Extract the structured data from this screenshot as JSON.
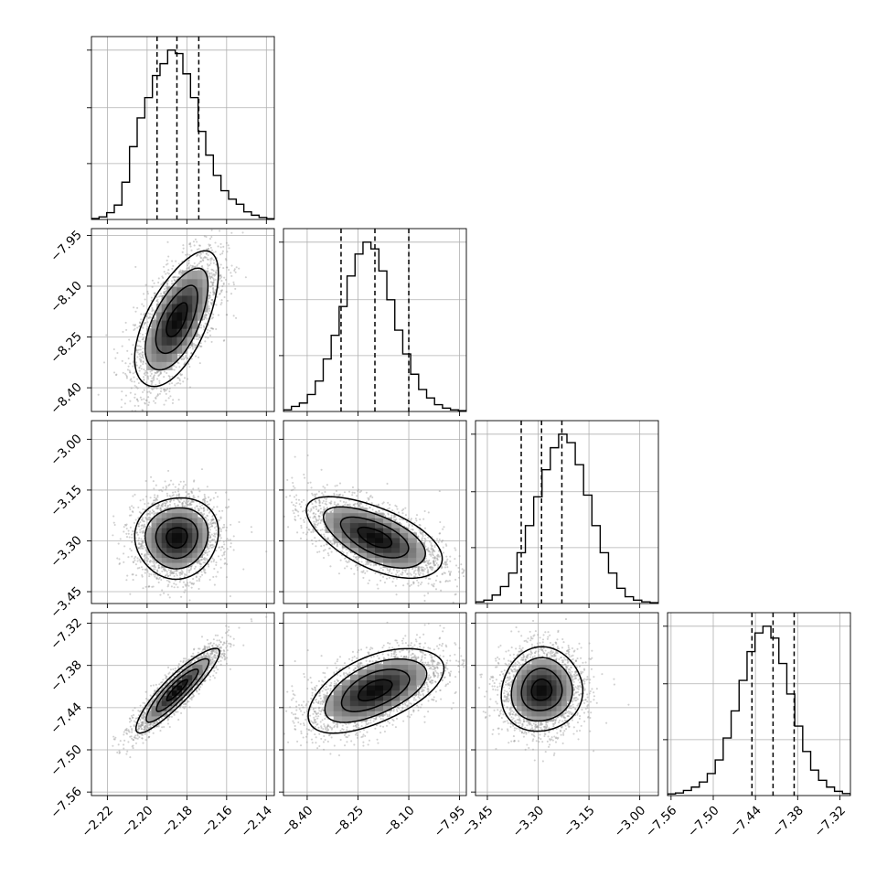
{
  "chart_data": {
    "type": "corner",
    "parameters": [
      {
        "axis_range": [
          -2.228,
          -2.136
        ],
        "ticks": [
          -2.22,
          -2.2,
          -2.18,
          -2.16,
          -2.14
        ],
        "tick_labels": [
          "−2.22",
          "−2.20",
          "−2.18",
          "−2.16",
          "−2.14"
        ],
        "quantiles": [
          -2.195,
          -2.185,
          -2.174
        ],
        "hist_values": [
          0.006,
          0.015,
          0.04,
          0.085,
          0.22,
          0.43,
          0.6,
          0.72,
          0.85,
          0.92,
          1.0,
          0.98,
          0.86,
          0.72,
          0.52,
          0.38,
          0.26,
          0.17,
          0.12,
          0.09,
          0.045,
          0.025,
          0.012,
          0.004
        ]
      },
      {
        "axis_range": [
          -8.47,
          -7.93
        ],
        "ticks": [
          -8.4,
          -8.25,
          -8.1,
          -7.95
        ],
        "tick_labels": [
          "−8.40",
          "−8.25",
          "−8.10",
          "−7.95"
        ],
        "quantiles": [
          -8.3,
          -8.2,
          -8.1
        ],
        "hist_values": [
          0.01,
          0.03,
          0.05,
          0.1,
          0.18,
          0.31,
          0.45,
          0.62,
          0.8,
          0.93,
          1.0,
          0.96,
          0.83,
          0.66,
          0.48,
          0.34,
          0.22,
          0.13,
          0.08,
          0.04,
          0.02,
          0.01,
          0.005
        ]
      },
      {
        "axis_range": [
          -3.485,
          -2.945
        ],
        "ticks": [
          -3.45,
          -3.3,
          -3.15,
          -3.0
        ],
        "tick_labels": [
          "−3.45",
          "−3.30",
          "−3.15",
          "−3.00"
        ],
        "quantiles": [
          -3.35,
          -3.29,
          -3.23
        ],
        "hist_values": [
          0.01,
          0.02,
          0.05,
          0.1,
          0.18,
          0.3,
          0.46,
          0.63,
          0.79,
          0.92,
          1.0,
          0.95,
          0.82,
          0.64,
          0.46,
          0.3,
          0.18,
          0.09,
          0.04,
          0.02,
          0.01,
          0.005
        ]
      },
      {
        "axis_range": [
          -7.565,
          -7.305
        ],
        "ticks": [
          -7.56,
          -7.5,
          -7.44,
          -7.38,
          -7.32
        ],
        "tick_labels": [
          "−7.56",
          "−7.50",
          "−7.44",
          "−7.38",
          "−7.32"
        ],
        "quantiles": [
          -7.445,
          -7.415,
          -7.385
        ],
        "hist_values": [
          0.01,
          0.015,
          0.03,
          0.05,
          0.08,
          0.13,
          0.21,
          0.34,
          0.5,
          0.68,
          0.85,
          0.96,
          1.0,
          0.93,
          0.78,
          0.6,
          0.41,
          0.26,
          0.15,
          0.09,
          0.05,
          0.025,
          0.012
        ]
      }
    ],
    "correlations": {
      "1-0": 0.62,
      "2-0": 0.05,
      "2-1": -0.6,
      "3-0": 0.9,
      "3-1": 0.55,
      "3-2": 0.05
    },
    "contour_levels_sigma": [
      0.5,
      1.0,
      1.5,
      2.0
    ],
    "grid": true,
    "colors": {
      "scatter": "#9a9a9a",
      "line": "#000000",
      "grid": "#b0b0b0",
      "density_max": "#000000"
    }
  }
}
